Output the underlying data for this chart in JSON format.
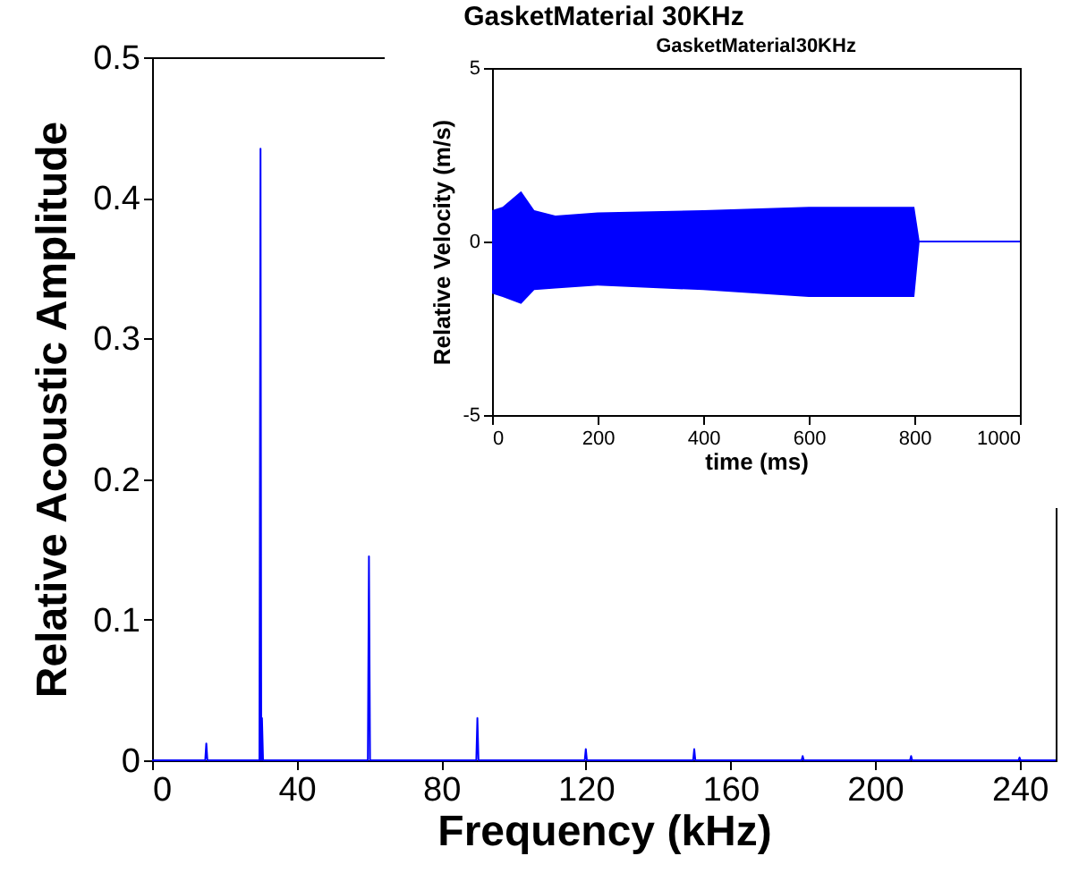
{
  "chart_data": [
    {
      "type": "line",
      "title": "GasketMaterial 30KHz",
      "xlabel": "Frequency (kHz)",
      "ylabel": "Relative Acoustic Amplitude",
      "xlim": [
        0,
        250
      ],
      "xticks": [
        0,
        40,
        80,
        120,
        160,
        200,
        240
      ],
      "ylim": [
        0,
        0.5
      ],
      "yticks": [
        0,
        0.1,
        0.2,
        0.3,
        0.4,
        0.5
      ],
      "series": [
        {
          "color": "#0000ff",
          "x": [
            0,
            14.7,
            15,
            15.3,
            29.7,
            30,
            30.2,
            30.4,
            30.7,
            59.7,
            60,
            60.3,
            89.7,
            90,
            90.3,
            119.7,
            120,
            120.3,
            149.7,
            150,
            150.3,
            179.7,
            180,
            180.3,
            209.7,
            210,
            210.3,
            239.7,
            240,
            240.3,
            250
          ],
          "values": [
            0,
            0,
            0.012,
            0,
            0,
            0.435,
            0,
            0.03,
            0,
            0,
            0.145,
            0,
            0,
            0.03,
            0,
            0,
            0.008,
            0,
            0,
            0.008,
            0,
            0,
            0.003,
            0,
            0,
            0.003,
            0,
            0,
            0.002,
            0,
            0
          ]
        }
      ]
    },
    {
      "type": "line",
      "title": "GasketMaterial30KHz",
      "xlabel": "time (ms)",
      "ylabel": "Relative Velocity (m/s)",
      "xlim": [
        0,
        1000
      ],
      "xticks": [
        0,
        200,
        400,
        600,
        800,
        1000
      ],
      "ylim": [
        -5,
        5
      ],
      "yticks": [
        -5,
        0,
        5
      ],
      "series": [
        {
          "color": "#0000ff",
          "x": [
            0,
            20,
            55,
            80,
            120,
            200,
            400,
            600,
            800,
            810,
            1000
          ],
          "values": [
            0,
            0,
            0,
            0,
            0,
            0,
            0,
            0,
            0,
            0,
            0
          ],
          "lower": [
            -1.5,
            -1.6,
            -1.8,
            -1.4,
            -1.35,
            -1.27,
            -1.4,
            -1.6,
            -1.6,
            0,
            0
          ],
          "upper": [
            0.9,
            1.0,
            1.45,
            0.9,
            0.75,
            0.84,
            0.9,
            1.0,
            1.0,
            0,
            0
          ]
        }
      ]
    }
  ]
}
